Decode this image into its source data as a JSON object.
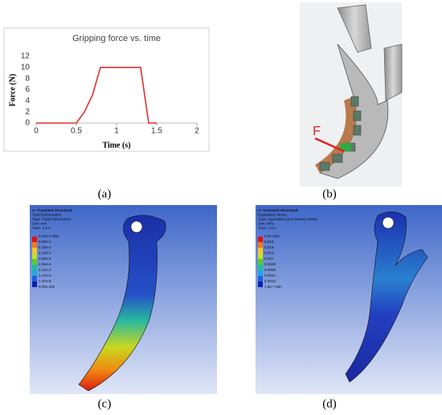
{
  "chart_data": {
    "type": "line",
    "title": "Gripping force vs. time",
    "x_label": "Time (s)",
    "y_label": "Force (N)",
    "x": [
      0,
      0.5,
      0.6,
      0.7,
      0.8,
      1.3,
      1.4,
      1.5
    ],
    "values": [
      0,
      0,
      2,
      5,
      10,
      10,
      0,
      0
    ],
    "color": "#e03030",
    "xlim": [
      0,
      2
    ],
    "xticks": [
      0,
      0.5,
      1,
      1.5,
      2
    ],
    "ylim": [
      0,
      12
    ],
    "yticks": [
      0,
      2,
      4,
      6,
      8,
      10,
      12
    ],
    "grid": false
  },
  "panel_labels": [
    "(a)",
    "(b)",
    "(c)",
    "(d)"
  ],
  "force_label": "F",
  "deformation_legend": {
    "header": [
      "A: Transient Structural",
      "Total Deformation",
      "Type: Total Deformation",
      "Unit: mm",
      "Time: 1.5 s"
    ],
    "levels": [
      "6.64e-4 Max",
      "5.90e-4",
      "5.16e-4",
      "4.42e-4",
      "3.69e-4",
      "2.95e-4",
      "2.21e-4",
      "1.47e-4",
      "7.37e-5",
      "0.00e Min"
    ]
  },
  "stress_legend": {
    "header": [
      "A: Transient Structural",
      "Equivalent Stress",
      "Type: Equivalent (von-Mises) Stress",
      "Unit: MPa",
      "Time: 1.5 s"
    ],
    "levels": [
      "0.02 Max",
      "0.018",
      "0.015",
      "0.013",
      "0.011",
      "0.0088",
      "0.0066",
      "0.0044",
      "0.0022",
      "1.8e-7 Min"
    ]
  }
}
